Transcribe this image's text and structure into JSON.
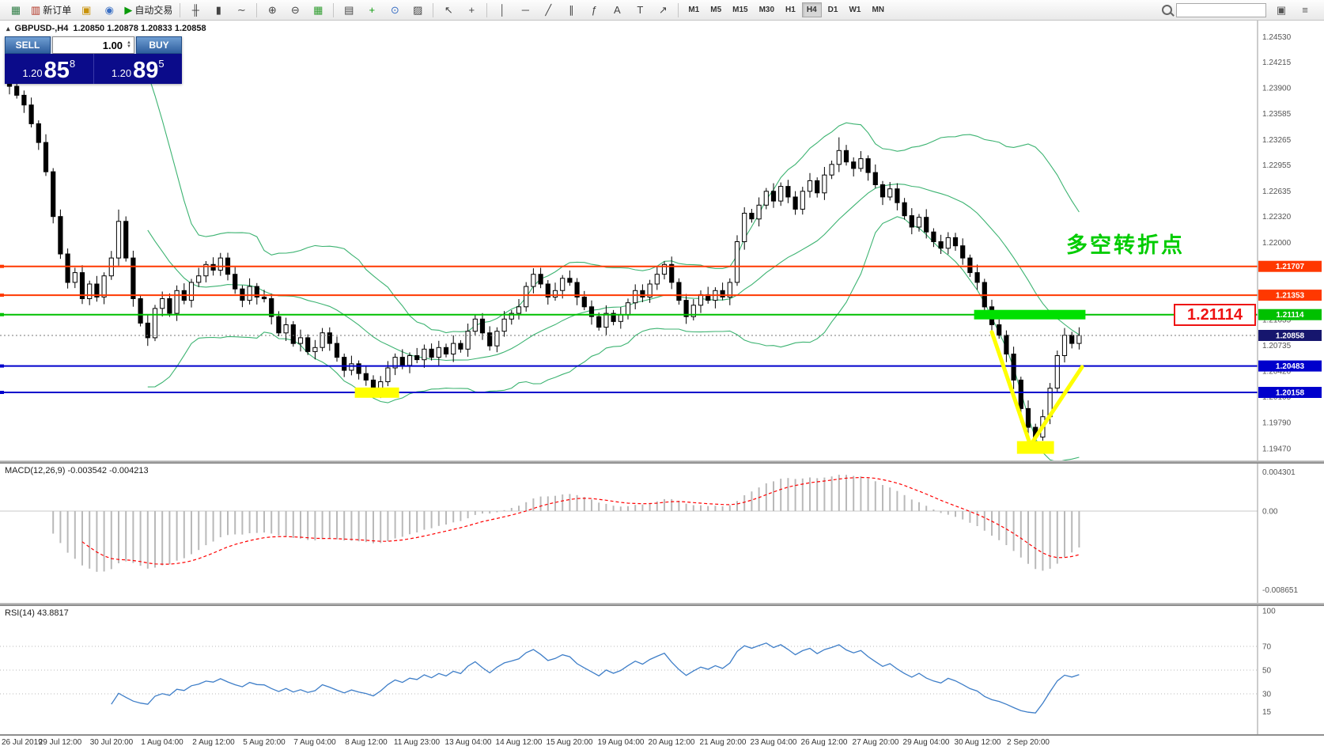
{
  "toolbar": {
    "buttons": [
      {
        "name": "charts-icon",
        "glyph": "▦",
        "color": "#2f7d46"
      },
      {
        "name": "new-order-button",
        "glyph": "▥",
        "color": "#b03020",
        "label": "新订单"
      },
      {
        "name": "profiles-icon",
        "glyph": "▣",
        "color": "#c8920a"
      },
      {
        "name": "data-window-icon",
        "glyph": "◉",
        "color": "#3a6fc4"
      },
      {
        "name": "autotrading-button",
        "glyph": "▶",
        "color": "#0a9a0a",
        "label": "自动交易"
      },
      {
        "sep": true
      },
      {
        "name": "bar-chart-icon",
        "glyph": "╫",
        "color": "#444444"
      },
      {
        "name": "candlestick-chart-icon",
        "glyph": "▮",
        "color": "#444444"
      },
      {
        "name": "line-chart-icon",
        "glyph": "∼",
        "color": "#444444"
      },
      {
        "sep": true
      },
      {
        "name": "zoom-in-icon",
        "glyph": "⊕",
        "color": "#444444"
      },
      {
        "name": "zoom-out-icon",
        "glyph": "⊖",
        "color": "#444444"
      },
      {
        "name": "tile-windows-icon",
        "glyph": "▦",
        "color": "#2f9d2f"
      },
      {
        "sep": true
      },
      {
        "name": "new-chart-icon",
        "glyph": "▤",
        "color": "#444444"
      },
      {
        "name": "indicators-icon",
        "glyph": "+",
        "color": "#0a9a0a"
      },
      {
        "name": "periods-icon",
        "glyph": "⊙",
        "color": "#3a6fc4"
      },
      {
        "name": "templates-icon",
        "glyph": "▨",
        "color": "#444444"
      },
      {
        "sep": true
      },
      {
        "name": "cursor-icon",
        "glyph": "↖",
        "color": "#444444"
      },
      {
        "name": "crosshair-icon",
        "glyph": "+",
        "color": "#444444"
      },
      {
        "sep": true
      },
      {
        "name": "vertical-line-icon",
        "glyph": "│",
        "color": "#444444"
      },
      {
        "name": "horizontal-line-icon",
        "glyph": "─",
        "color": "#444444"
      },
      {
        "name": "trendline-icon",
        "glyph": "╱",
        "color": "#444444"
      },
      {
        "name": "equidistant-channel-icon",
        "glyph": "∥",
        "color": "#444444"
      },
      {
        "name": "fibonacci-icon",
        "glyph": "ƒ",
        "color": "#444444"
      },
      {
        "name": "text-icon",
        "glyph": "A",
        "color": "#444444"
      },
      {
        "name": "text-label-icon",
        "glyph": "T",
        "color": "#444444"
      },
      {
        "name": "arrows-icon",
        "glyph": "↗",
        "color": "#444444"
      },
      {
        "sep": true
      }
    ],
    "timeframes": [
      "M1",
      "M5",
      "M15",
      "M30",
      "H1",
      "H4",
      "D1",
      "W1",
      "MN"
    ],
    "active_timeframe": "H4",
    "search_placeholder": "",
    "right_icons": [
      {
        "name": "window-icon",
        "glyph": "▣",
        "color": "#555555"
      },
      {
        "name": "menu-icon",
        "glyph": "≡",
        "color": "#555555"
      }
    ]
  },
  "chart_header": {
    "collapse_icon": "▴",
    "symbol": "GBPUSD-,H4",
    "ohlc": "1.20850 1.20878 1.20833 1.20858"
  },
  "trade_panel": {
    "sell_label": "SELL",
    "buy_label": "BUY",
    "volume": "1.00",
    "spin_up": "▲",
    "spin_down": "▼",
    "bid": {
      "prefix": "1.20",
      "big": "85",
      "sup": "8"
    },
    "ask": {
      "prefix": "1.20",
      "big": "89",
      "sup": "5"
    }
  },
  "annotations": {
    "turning_point_text": "多空转折点",
    "turning_point_color": "#00cc00",
    "callout_text": "1.21114",
    "callout_color": "#ee1111"
  },
  "chart_data": {
    "type": "candlestick",
    "title": "GBPUSD-,H4",
    "x_labels": [
      "26 Jul 2019",
      "29 Jul 12:00",
      "30 Jul 20:00",
      "1 Aug 04:00",
      "2 Aug 12:00",
      "5 Aug 20:00",
      "7 Aug 04:00",
      "8 Aug 12:00",
      "11 Aug 23:00",
      "13 Aug 04:00",
      "14 Aug 12:00",
      "15 Aug 20:00",
      "19 Aug 04:00",
      "20 Aug 12:00",
      "21 Aug 20:00",
      "23 Aug 04:00",
      "26 Aug 12:00",
      "27 Aug 20:00",
      "29 Aug 04:00",
      "30 Aug 12:00",
      "2 Sep 20:00"
    ],
    "price_axis_labels": [
      "1.24530",
      "1.24215",
      "1.23900",
      "1.23585",
      "1.23265",
      "1.22955",
      "1.22635",
      "1.22320",
      "1.22000",
      "1.21690",
      "1.21370",
      "1.21055",
      "1.20735",
      "1.20420",
      "1.20105",
      "1.19790",
      "1.19470"
    ],
    "price_range": [
      1.194,
      1.2465
    ],
    "closes": [
      1.2392,
      1.2381,
      1.2369,
      1.2346,
      1.2323,
      1.2287,
      1.2232,
      1.2186,
      1.2151,
      1.2163,
      1.2131,
      1.2149,
      1.2133,
      1.2159,
      1.2181,
      1.2226,
      1.2181,
      1.2131,
      1.2101,
      1.2083,
      1.2119,
      1.2131,
      1.2113,
      1.2141,
      1.2129,
      1.2151,
      1.2159,
      1.2173,
      1.2166,
      1.2181,
      1.2161,
      1.2143,
      1.2129,
      1.2146,
      1.2133,
      1.2131,
      1.2109,
      1.2089,
      1.2099,
      1.2076,
      1.2083,
      1.2066,
      1.2071,
      1.2089,
      1.2076,
      1.2059,
      1.2043,
      1.2051,
      1.2039,
      1.2031,
      1.2017,
      1.2029,
      1.2046,
      1.2059,
      1.2049,
      1.2061,
      1.2056,
      1.2069,
      1.2059,
      1.2071,
      1.2063,
      1.2076,
      1.2069,
      1.2091,
      1.2106,
      1.2089,
      1.2073,
      1.2091,
      1.2106,
      1.2113,
      1.2121,
      1.2146,
      1.2161,
      1.2149,
      1.2133,
      1.2141,
      1.2156,
      1.2151,
      1.2133,
      1.2121,
      1.2109,
      1.2096,
      1.2113,
      1.2103,
      1.2111,
      1.2126,
      1.2141,
      1.2133,
      1.2149,
      1.2161,
      1.2173,
      1.2151,
      1.2129,
      1.2109,
      1.2123,
      1.2136,
      1.2129,
      1.2141,
      1.2133,
      1.2151,
      1.2201,
      1.2236,
      1.2229,
      1.2246,
      1.2263,
      1.2251,
      1.2269,
      1.2256,
      1.2241,
      1.2263,
      1.2276,
      1.2261,
      1.2283,
      1.2296,
      1.2313,
      1.2299,
      1.2291,
      1.2303,
      1.2286,
      1.2271,
      1.2256,
      1.2266,
      1.2249,
      1.2233,
      1.2219,
      1.2231,
      1.2213,
      1.2201,
      1.2193,
      1.2206,
      1.2196,
      1.2181,
      1.2163,
      1.2151,
      1.2121,
      1.2099,
      1.2086,
      1.2063,
      1.2031,
      1.1996,
      1.1973,
      1.1961,
      1.1986,
      1.2021,
      1.2061,
      1.2086,
      1.2076,
      1.20858
    ],
    "hlines": [
      {
        "price": 1.21707,
        "color": "#ff3800",
        "label": "1.21707"
      },
      {
        "price": 1.21353,
        "color": "#ff3800",
        "label": "1.21353"
      },
      {
        "price": 1.21114,
        "color": "#00c000",
        "label": "1.21114"
      },
      {
        "price": 1.20483,
        "color": "#0000cc",
        "label": "1.20483"
      },
      {
        "price": 1.20158,
        "color": "#0000cc",
        "label": "1.20158"
      }
    ],
    "current_price": {
      "value": 1.20858,
      "label": "1.20858",
      "tag_color": "#16166e"
    },
    "highlights": {
      "yellow_low_zone": {
        "price": 1.2016,
        "bars": [
          48,
          53
        ],
        "color": "#ffff00"
      },
      "green_level_bar": {
        "price": 1.21114,
        "bars": [
          133,
          147
        ],
        "color": "#00e000"
      },
      "v_shape": {
        "color": "#ffff00",
        "points": [
          [
            135,
            1.209
          ],
          [
            140.3,
            1.1951
          ],
          [
            147.4,
            1.2047
          ]
        ]
      },
      "yellow_base": {
        "price": 1.1953,
        "bars": [
          139,
          143
        ],
        "color": "#ffff00"
      }
    },
    "indicators": {
      "bollinger": {
        "period": 20,
        "deviation": 2,
        "color": "#3cb371"
      },
      "macd": {
        "label": "MACD(12,26,9) -0.003542 -0.004213",
        "fast": 12,
        "slow": 26,
        "signal": 9,
        "axis_labels": [
          {
            "text": "0.004301",
            "value": 0.004301
          },
          {
            "text": "0.00",
            "value": 0
          },
          {
            "text": "-0.008651",
            "value": -0.008651
          }
        ],
        "histogram_color": "#b9b9b9",
        "signal_color": "#ff0000"
      },
      "rsi": {
        "label": "RSI(14) 43.8817",
        "period": 14,
        "value": 43.8817,
        "axis_labels": [
          {
            "text": "100",
            "value": 100
          },
          {
            "text": "70",
            "value": 70
          },
          {
            "text": "50",
            "value": 50
          },
          {
            "text": "30",
            "value": 30
          },
          {
            "text": "15",
            "value": 15
          }
        ],
        "levels": [
          70,
          50,
          30
        ],
        "color": "#3e7ec8"
      }
    }
  }
}
